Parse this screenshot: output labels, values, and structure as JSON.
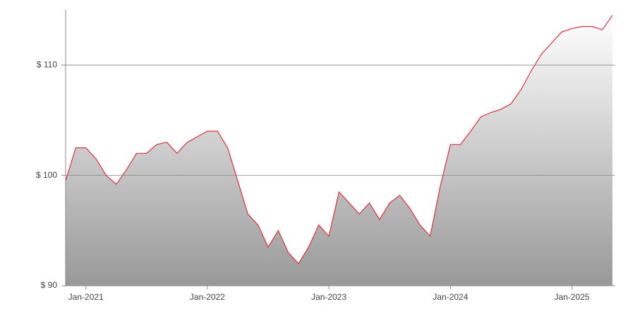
{
  "chart_data": {
    "type": "area",
    "x": [
      "2020-11",
      "2020-12",
      "2021-01",
      "2021-02",
      "2021-03",
      "2021-04",
      "2021-05",
      "2021-06",
      "2021-07",
      "2021-08",
      "2021-09",
      "2021-10",
      "2021-11",
      "2021-12",
      "2022-01",
      "2022-02",
      "2022-03",
      "2022-04",
      "2022-05",
      "2022-06",
      "2022-07",
      "2022-08",
      "2022-09",
      "2022-10",
      "2022-11",
      "2022-12",
      "2023-01",
      "2023-02",
      "2023-03",
      "2023-04",
      "2023-05",
      "2023-06",
      "2023-07",
      "2023-08",
      "2023-09",
      "2023-10",
      "2023-11",
      "2023-12",
      "2024-01",
      "2024-02",
      "2024-03",
      "2024-04",
      "2024-05",
      "2024-06",
      "2024-07",
      "2024-08",
      "2024-09",
      "2024-10",
      "2024-11",
      "2024-12",
      "2025-01",
      "2025-02",
      "2025-03",
      "2025-04",
      "2025-05"
    ],
    "values": [
      99.5,
      102.5,
      102.5,
      101.5,
      100,
      99.2,
      100.5,
      102,
      102,
      102.8,
      103,
      102,
      103,
      103.5,
      104,
      104,
      102.5,
      99.5,
      96.5,
      95.5,
      93.5,
      95,
      93,
      92,
      93.5,
      95.5,
      94.5,
      98.5,
      97.5,
      96.5,
      97.5,
      96,
      97.5,
      98.2,
      97,
      95.5,
      94.5,
      99,
      102.8,
      102.8,
      104,
      105.3,
      105.7,
      106,
      106.5,
      107.8,
      109.5,
      111,
      112,
      113,
      113.3,
      113.5,
      113.5,
      113.2,
      114.5
    ],
    "color": "#e0303c",
    "xlim": [
      "2020-11",
      "2025-05"
    ],
    "xticks": [
      {
        "value": "2021-01",
        "label": "Jan-2021"
      },
      {
        "value": "2022-01",
        "label": "Jan-2022"
      },
      {
        "value": "2023-01",
        "label": "Jan-2023"
      },
      {
        "value": "2024-01",
        "label": "Jan-2024"
      },
      {
        "value": "2025-01",
        "label": "Jan-2025"
      }
    ],
    "ylim": [
      90,
      115
    ],
    "yticks": [
      {
        "value": 90,
        "label": "$ 90"
      },
      {
        "value": 100,
        "label": "$ 100"
      },
      {
        "value": 110,
        "label": "$ 110"
      }
    ],
    "grid": true
  }
}
